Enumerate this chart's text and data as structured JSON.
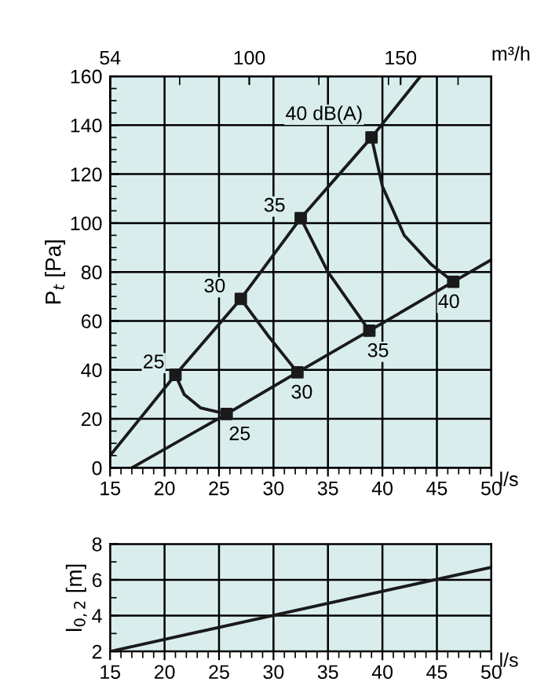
{
  "chart_data": [
    {
      "type": "line",
      "xlabel": "l/s",
      "ylabel": "P$_{t}$ [Pa]",
      "x2label": "m³/h",
      "xlim": [
        15,
        50
      ],
      "xticks": [
        15,
        20,
        25,
        30,
        35,
        40,
        45,
        50
      ],
      "ylim": [
        0,
        160
      ],
      "yticks": [
        0,
        20,
        40,
        60,
        80,
        100,
        120,
        140,
        160
      ],
      "x2lim": [
        54,
        180
      ],
      "x2ticks": [
        54,
        100,
        150
      ],
      "grid": true,
      "marker": "none",
      "series": [
        {
          "color": "#1a1a1a",
          "x": [
            15,
            21,
            27,
            32.5,
            39,
            43.5
          ],
          "values": [
            5,
            38,
            69,
            102,
            135,
            160
          ]
        },
        {
          "color": "#1a1a1a",
          "x": [
            17,
            25.7,
            32.2,
            38.8,
            46.5,
            50
          ],
          "values": [
            0,
            22,
            39,
            56,
            76,
            85
          ]
        },
        {
          "color": "#1a1a1a",
          "x": [
            21,
            21.8,
            23.3,
            25.7
          ],
          "values": [
            38,
            30,
            24.5,
            22
          ]
        },
        {
          "color": "#1a1a1a",
          "x": [
            27,
            29.5,
            32.2
          ],
          "values": [
            69,
            54,
            39
          ]
        },
        {
          "color": "#1a1a1a",
          "x": [
            32.5,
            35,
            38.8
          ],
          "values": [
            102,
            80,
            56
          ]
        },
        {
          "color": "#1a1a1a",
          "x": [
            39,
            40,
            42,
            44.5,
            46.5
          ],
          "values": [
            135,
            115,
            95,
            83,
            76
          ]
        },
        {
          "type": "scatter",
          "marker": "square",
          "color": "#1a1a1a",
          "x": [
            21,
            27,
            32.5,
            39,
            25.7,
            32.2,
            38.8,
            46.5
          ],
          "values": [
            38,
            69,
            102,
            135,
            22,
            39,
            56,
            76
          ]
        }
      ],
      "annotations": [
        {
          "text": "25",
          "x": 21,
          "y": 38
        },
        {
          "text": "30",
          "x": 27,
          "y": 69
        },
        {
          "text": "35",
          "x": 32.5,
          "y": 102
        },
        {
          "text": "40 dB(A)",
          "x": 39,
          "y": 135
        },
        {
          "text": "25",
          "x": 25.7,
          "y": 22
        },
        {
          "text": "30",
          "x": 32.2,
          "y": 39
        },
        {
          "text": "35",
          "x": 38.8,
          "y": 56
        },
        {
          "text": "40",
          "x": 46.5,
          "y": 76
        }
      ]
    },
    {
      "type": "line",
      "xlabel": "l/s",
      "ylabel": "l$_{0,2}$ [m]",
      "xlim": [
        15,
        50
      ],
      "xticks": [
        15,
        20,
        25,
        30,
        35,
        40,
        45,
        50
      ],
      "ylim": [
        2,
        8
      ],
      "yticks": [
        2,
        4,
        6,
        8
      ],
      "grid": true,
      "marker": "none",
      "series": [
        {
          "color": "#1a1a1a",
          "x": [
            15,
            50
          ],
          "values": [
            2,
            6.7
          ]
        }
      ]
    }
  ]
}
